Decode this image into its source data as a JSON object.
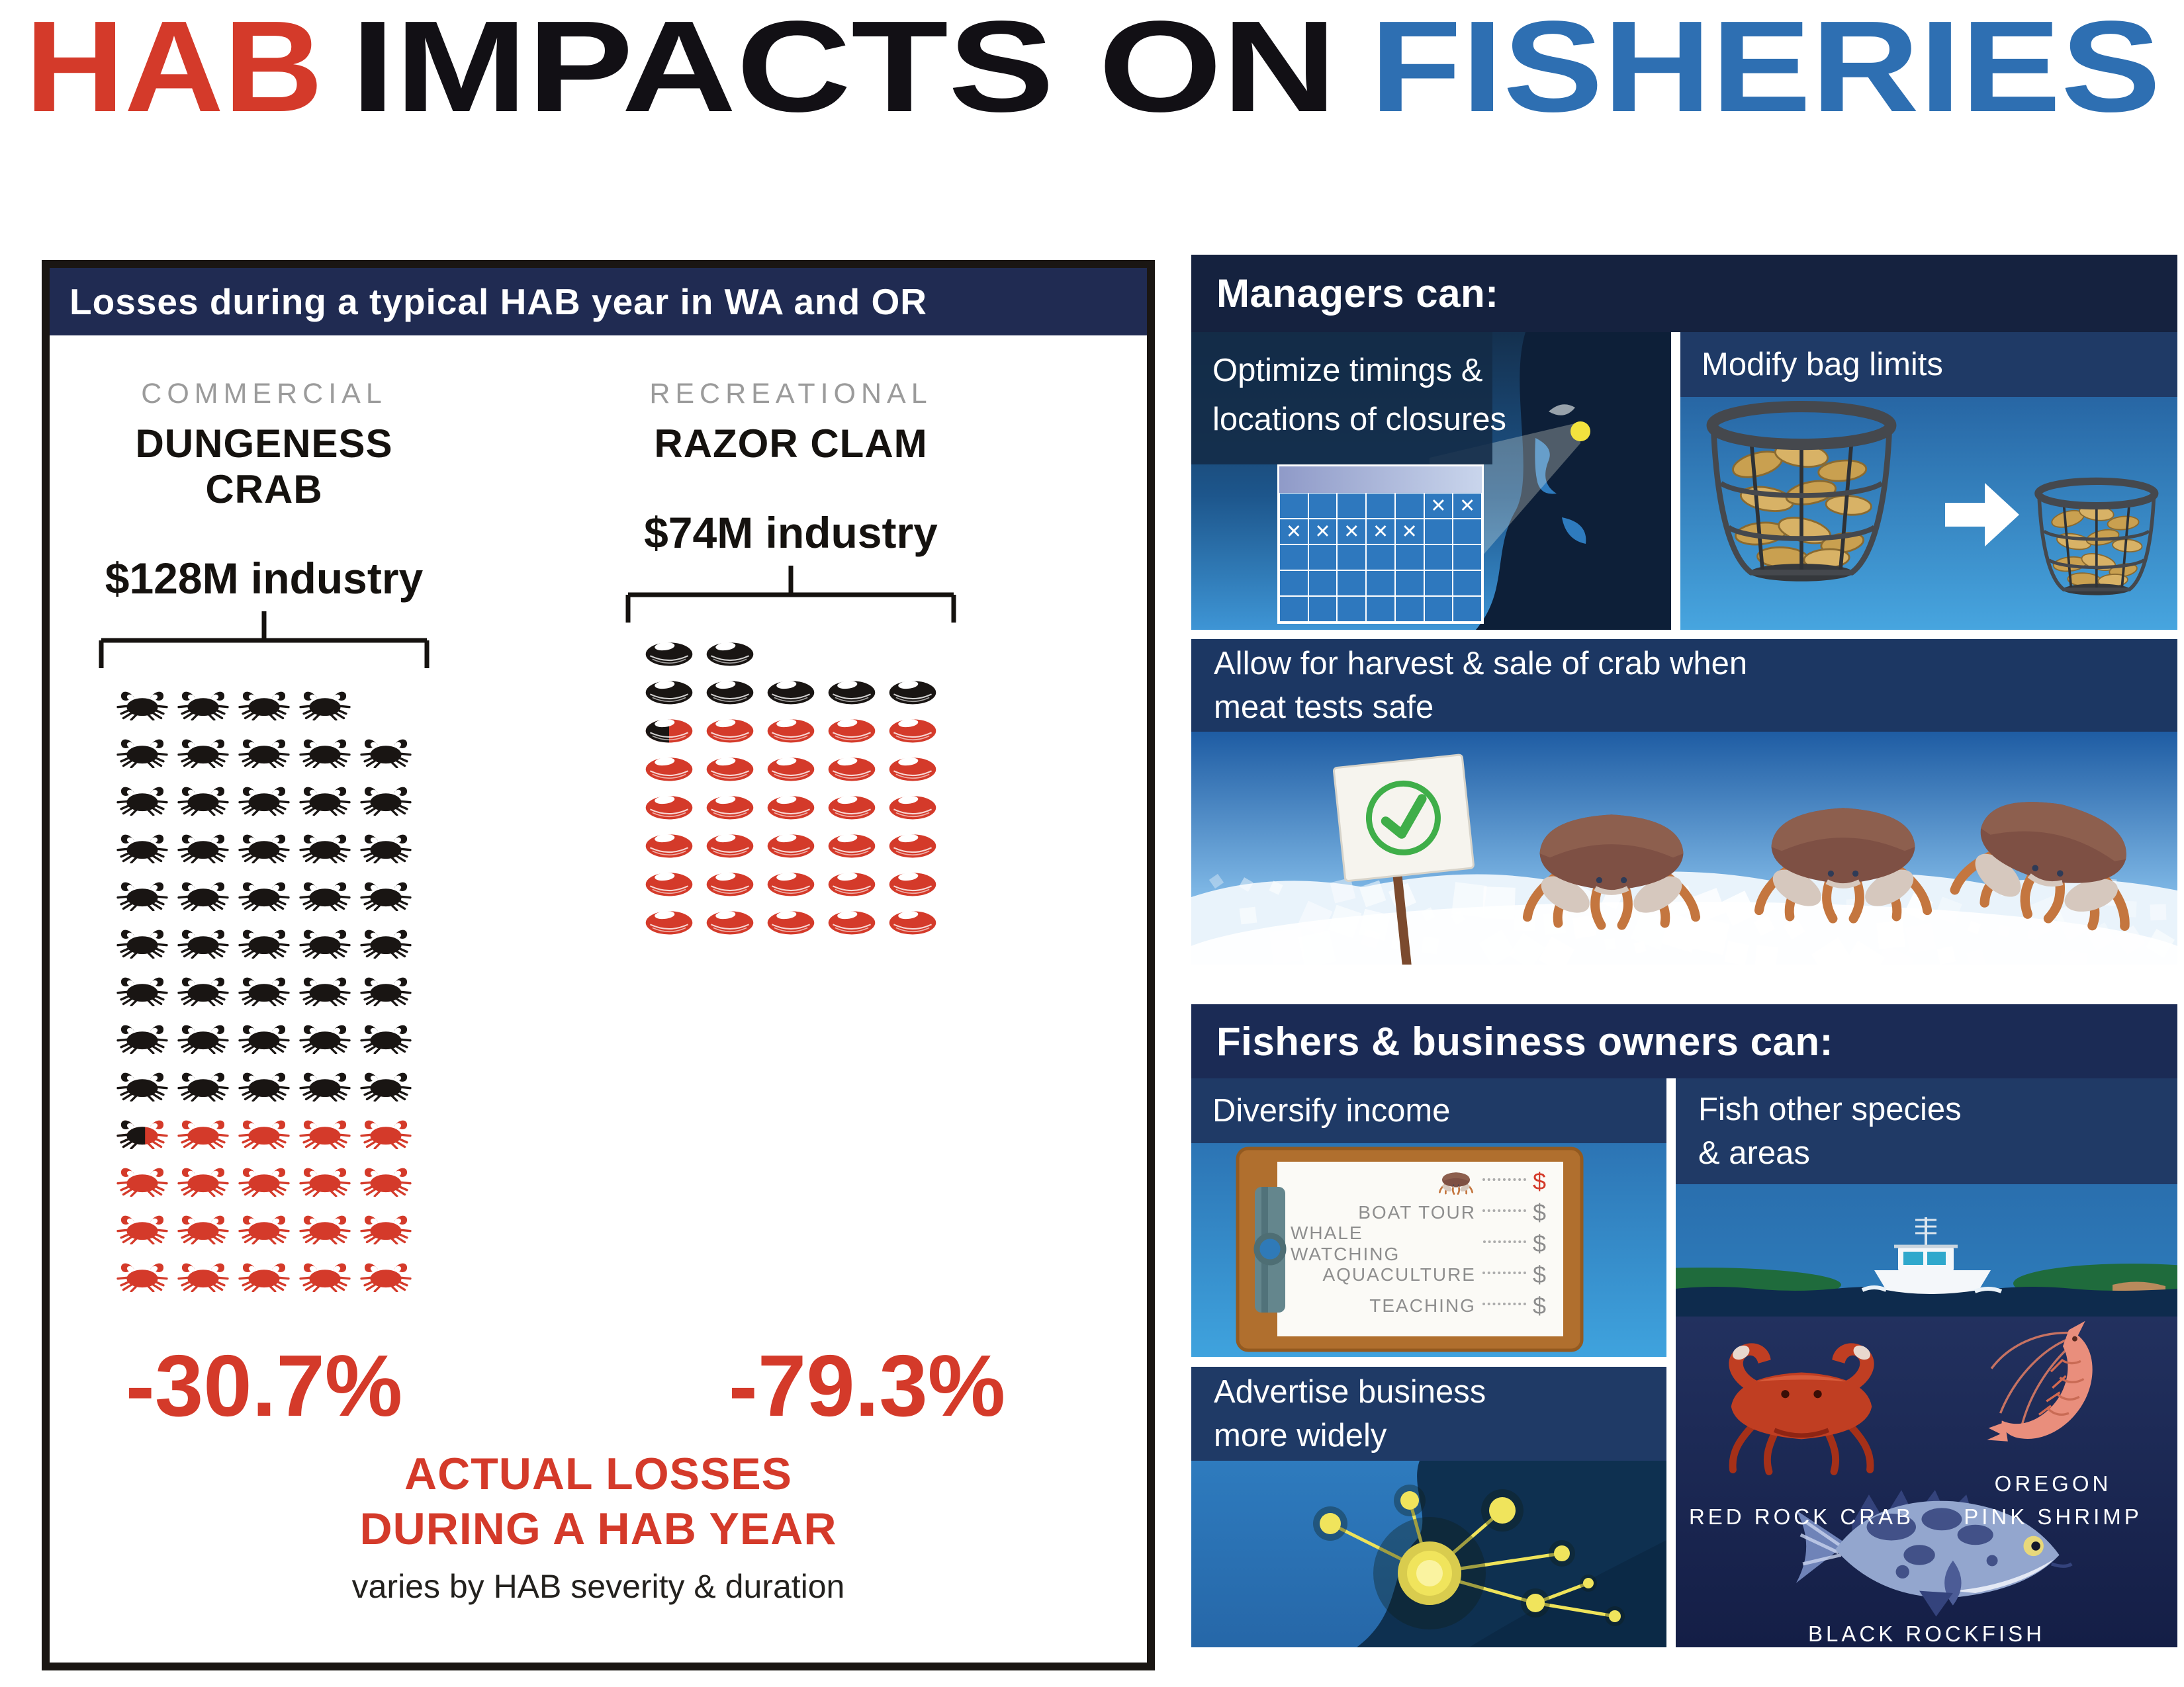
{
  "title": {
    "segments": [
      {
        "text": "HAB",
        "color": "#D43A2A"
      },
      {
        "text": "IMPACTS ON",
        "color": "#121015"
      },
      {
        "text": "FISHERIES",
        "color": "#2E6FB2"
      }
    ]
  },
  "colors": {
    "accent_red": "#D43A2A",
    "pictograph_black": "#191513",
    "navy_header": "#15223F",
    "navy_band": "#1F3A66",
    "panel_blue": "#2E7BBE",
    "calendar_blue": "#2E78BE",
    "check_green": "#3FAE49",
    "node_yellow": "#EFE35A"
  },
  "icons": {
    "crab": "crab silhouette pictogram",
    "clam": "razor clam shell pictogram",
    "x_mark": "✕",
    "check_mark": "✓",
    "arrow_right": "→"
  },
  "left_panel": {
    "header": "Losses during a typical HAB year in WA and OR",
    "columns": [
      {
        "category": "COMMERCIAL",
        "species": "DUNGENESS CRAB",
        "industry": "$128M industry",
        "loss_pct": "-30.7%",
        "icon": "crab",
        "rows": [
          "BBBB",
          "BBBBB",
          "BBBBB",
          "BBBBB",
          "BBBBB",
          "BBBBB",
          "BBBBB",
          "BBBBB",
          "BBBBB",
          "PRRRR",
          "RRRRR",
          "RRRRR",
          "RRRRR"
        ]
      },
      {
        "category": "RECREATIONAL",
        "species": "RAZOR CLAM",
        "industry": "$74M industry",
        "loss_pct": "-79.3%",
        "icon": "clam",
        "rows": [
          "BB",
          "BBBBB",
          "PRRRR",
          "RRRRR",
          "RRRRR",
          "RRRRR",
          "RRRRR",
          "RRRRR"
        ]
      }
    ],
    "footer_line1": "ACTUAL LOSSES",
    "footer_line2": "DURING A HAB YEAR",
    "footer_note": "varies by HAB severity & duration"
  },
  "managers": {
    "header": "Managers can:",
    "optimize": {
      "title": [
        "Optimize timings &",
        "locations of closures"
      ],
      "calendar": {
        "cols": 7,
        "rows": 5,
        "mark_glyph": "✕",
        "marks": [
          [
            0,
            5
          ],
          [
            0,
            6
          ],
          [
            1,
            0
          ],
          [
            1,
            1
          ],
          [
            1,
            2
          ],
          [
            1,
            3
          ],
          [
            1,
            4
          ]
        ]
      }
    },
    "bag": {
      "title": "Modify bag limits"
    },
    "allow": {
      "title": [
        "Allow for harvest & sale of crab when",
        "meat tests safe"
      ]
    }
  },
  "fishers": {
    "header": "Fishers & business owners can:",
    "diversify": {
      "title": "Diversify income",
      "list": [
        {
          "label": "",
          "crab_icon": true,
          "dollar": "$",
          "dollar_color": "#D43A2A"
        },
        {
          "label": "BOAT TOUR",
          "dollar": "$"
        },
        {
          "label": "WHALE WATCHING",
          "dollar": "$"
        },
        {
          "label": "AQUACULTURE",
          "dollar": "$"
        },
        {
          "label": "TEACHING",
          "dollar": "$"
        }
      ]
    },
    "fish_other": {
      "title": [
        "Fish other species",
        "& areas"
      ],
      "species": [
        {
          "name": "RED ROCK CRAB"
        },
        {
          "name": "OREGON PINK SHRIMP",
          "lines": [
            "OREGON",
            "PINK SHRIMP"
          ]
        },
        {
          "name": "BLACK ROCKFISH"
        }
      ]
    },
    "advertise": {
      "title": [
        "Advertise business",
        "more widely"
      ]
    }
  },
  "chart_data": [
    {
      "type": "pictograph",
      "title": "Commercial Dungeness crab losses during a typical HAB year (WA and OR)",
      "industry_value": "$128M industry",
      "loss_pct": -30.7,
      "icon": "crab",
      "total_icons": 64,
      "lost_icons": 19.65,
      "layout_rows": [
        4,
        5,
        5,
        5,
        5,
        5,
        5,
        5,
        5,
        5,
        5,
        5,
        5
      ]
    },
    {
      "type": "pictograph",
      "title": "Recreational razor clam losses during a typical HAB year (WA and OR)",
      "industry_value": "$74M industry",
      "loss_pct": -79.3,
      "icon": "clam",
      "total_icons": 37,
      "lost_icons": 29.3,
      "layout_rows": [
        2,
        5,
        5,
        5,
        5,
        5,
        5,
        5
      ]
    }
  ]
}
